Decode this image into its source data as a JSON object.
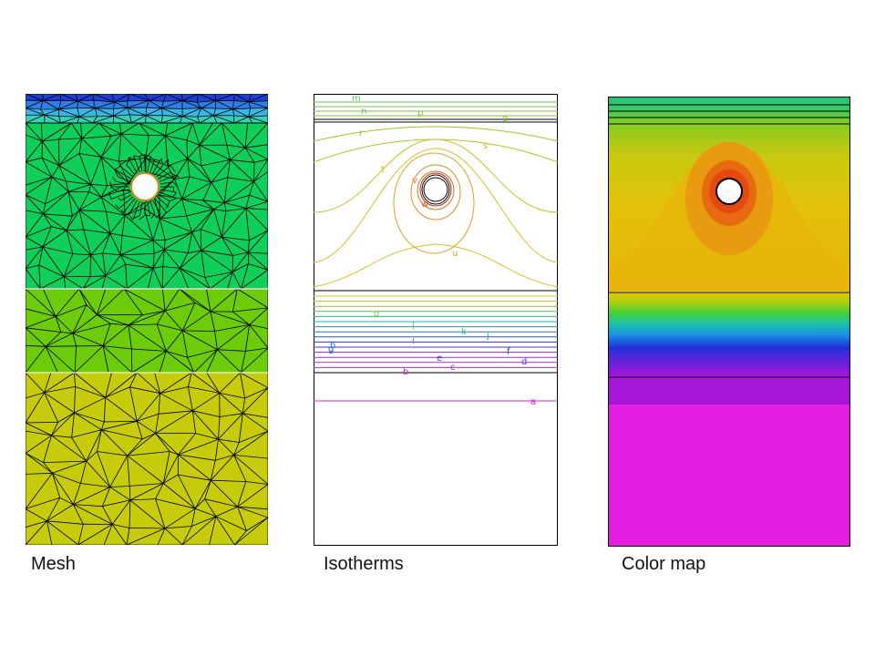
{
  "captions": {
    "mesh": "Mesh",
    "isotherms": "Isotherms",
    "colormap": "Color map"
  },
  "colors": {
    "mesh_top_bands": [
      "#1f3fd6",
      "#2f7fe6",
      "#39b6e8",
      "#39d0b8"
    ],
    "mesh_upper": "#0fcf5a",
    "mesh_middle": "#6ccc0c",
    "mesh_lower": "#c6cc0c",
    "colormap_top": "#1ec47f",
    "colormap_warm": "#e6c10a",
    "colormap_orange": "#e88a10",
    "colormap_red": "#e44a10",
    "colormap_purple": "#a716d6",
    "colormap_magenta": "#e21ee0"
  },
  "isotherm_labels": [
    "a",
    "b",
    "c",
    "d",
    "e",
    "f",
    "g",
    "h",
    "i",
    "j",
    "k",
    "l",
    "m",
    "n",
    "o",
    "p",
    "q",
    "r",
    "s",
    "t",
    "u",
    "v",
    "w"
  ]
}
